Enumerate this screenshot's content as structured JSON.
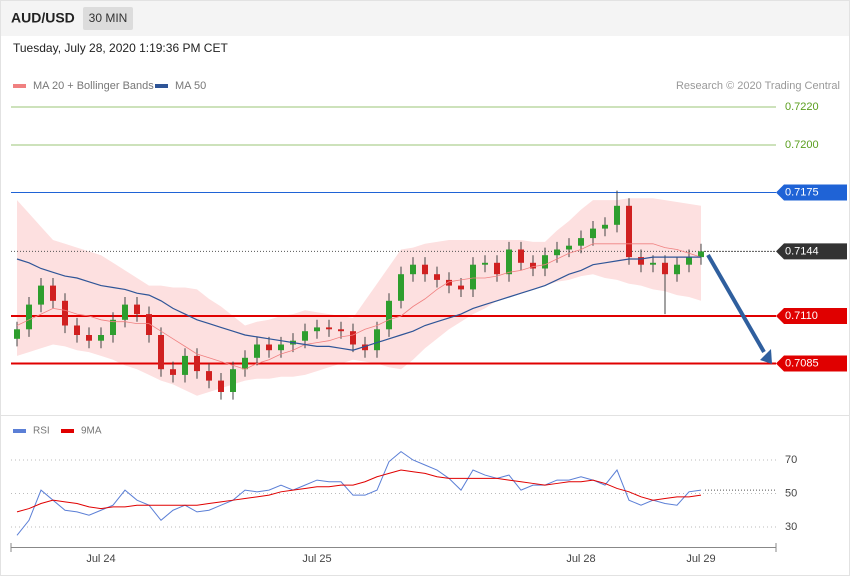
{
  "header": {
    "symbol": "AUD/USD",
    "interval": "30 MIN",
    "date": "Tuesday, July 28, 2020 1:19:36 PM CET"
  },
  "chart_data": [
    {
      "type": "candlestick",
      "credit": "Research © 2020 Trading Central",
      "ylim": [
        0.7061,
        0.7229
      ],
      "candles": {
        "up_color": "#2e9e2e",
        "down_color": "#d02020",
        "open": [
          0.7098,
          0.7103,
          0.7116,
          0.7126,
          0.7118,
          0.7105,
          0.71,
          0.7097,
          0.71,
          0.7108,
          0.7116,
          0.7111,
          0.71,
          0.7082,
          0.7079,
          0.7089,
          0.7081,
          0.7076,
          0.707,
          0.7082,
          0.7088,
          0.7095,
          0.7092,
          0.7095,
          0.7097,
          0.7102,
          0.7104,
          0.7103,
          0.7102,
          0.7095,
          0.7092,
          0.7103,
          0.7118,
          0.7132,
          0.7137,
          0.7132,
          0.7129,
          0.7126,
          0.7124,
          0.7137,
          0.7138,
          0.7132,
          0.7145,
          0.7138,
          0.7135,
          0.7142,
          0.7145,
          0.7147,
          0.7151,
          0.7156,
          0.7158,
          0.7168,
          0.7141,
          0.7137,
          0.7138,
          0.7132,
          0.7137,
          0.7141
        ],
        "high": [
          0.7107,
          0.712,
          0.713,
          0.713,
          0.7122,
          0.7109,
          0.7104,
          0.7104,
          0.7112,
          0.712,
          0.712,
          0.7115,
          0.7104,
          0.7086,
          0.7093,
          0.7093,
          0.7085,
          0.708,
          0.7086,
          0.7092,
          0.7099,
          0.7099,
          0.7099,
          0.7101,
          0.7106,
          0.7108,
          0.7108,
          0.7107,
          0.7106,
          0.7099,
          0.7107,
          0.7122,
          0.7136,
          0.7141,
          0.7141,
          0.7136,
          0.7133,
          0.713,
          0.7141,
          0.7142,
          0.7142,
          0.7149,
          0.7149,
          0.7142,
          0.7146,
          0.7149,
          0.7151,
          0.7155,
          0.716,
          0.7162,
          0.7176,
          0.7172,
          0.7145,
          0.7142,
          0.7142,
          0.7141,
          0.7145,
          0.7148
        ],
        "low": [
          0.7094,
          0.7099,
          0.7112,
          0.7114,
          0.7101,
          0.7096,
          0.7093,
          0.7093,
          0.7096,
          0.7104,
          0.7107,
          0.7096,
          0.7078,
          0.7075,
          0.7075,
          0.7077,
          0.7072,
          0.7066,
          0.7066,
          0.7078,
          0.7084,
          0.7088,
          0.7088,
          0.7091,
          0.7093,
          0.7098,
          0.7099,
          0.7098,
          0.7091,
          0.7088,
          0.7088,
          0.7099,
          0.7114,
          0.7128,
          0.7128,
          0.7125,
          0.7122,
          0.712,
          0.712,
          0.7133,
          0.7128,
          0.7128,
          0.7134,
          0.7131,
          0.7131,
          0.7138,
          0.7141,
          0.7143,
          0.7147,
          0.7152,
          0.7154,
          0.7137,
          0.7133,
          0.7133,
          0.7111,
          0.7128,
          0.7133,
          0.7137
        ],
        "close": [
          0.7103,
          0.7116,
          0.7126,
          0.7118,
          0.7105,
          0.71,
          0.7097,
          0.71,
          0.7108,
          0.7116,
          0.7111,
          0.71,
          0.7082,
          0.7079,
          0.7089,
          0.7081,
          0.7076,
          0.707,
          0.7082,
          0.7088,
          0.7095,
          0.7092,
          0.7095,
          0.7097,
          0.7102,
          0.7104,
          0.7103,
          0.7102,
          0.7095,
          0.7092,
          0.7103,
          0.7118,
          0.7132,
          0.7137,
          0.7132,
          0.7129,
          0.7126,
          0.7124,
          0.7137,
          0.7138,
          0.7132,
          0.7145,
          0.7138,
          0.7135,
          0.7142,
          0.7145,
          0.7147,
          0.7151,
          0.7156,
          0.7158,
          0.7168,
          0.7141,
          0.7137,
          0.7138,
          0.7132,
          0.7137,
          0.7141,
          0.7144
        ]
      },
      "series": [
        {
          "name": "MA 20 + Bollinger Bands",
          "color": "#f08080",
          "band_color": "#fde0e0",
          "values": [
            0.7105,
            0.7108,
            0.7111,
            0.7114,
            0.7113,
            0.7111,
            0.711,
            0.7108,
            0.7107,
            0.7107,
            0.7106,
            0.7106,
            0.7102,
            0.7098,
            0.7094,
            0.709,
            0.7088,
            0.7086,
            0.7084,
            0.7082,
            0.7085,
            0.7087,
            0.709,
            0.7092,
            0.7095,
            0.7096,
            0.7097,
            0.7099,
            0.71,
            0.7103,
            0.7105,
            0.7108,
            0.711,
            0.7115,
            0.7119,
            0.7124,
            0.7128,
            0.7129,
            0.713,
            0.713,
            0.7131,
            0.7133,
            0.7134,
            0.7136,
            0.7137,
            0.714,
            0.7143,
            0.7145,
            0.7148,
            0.7148,
            0.7148,
            0.7148,
            0.7148,
            0.7148,
            0.7146,
            0.7145,
            0.7143,
            0.7141
          ],
          "upper": [
            0.7171,
            0.7164,
            0.7157,
            0.715,
            0.7148,
            0.7146,
            0.7144,
            0.7142,
            0.7138,
            0.7134,
            0.713,
            0.7126,
            0.7126,
            0.7125,
            0.7125,
            0.7124,
            0.7119,
            0.7115,
            0.711,
            0.7105,
            0.7107,
            0.7108,
            0.711,
            0.7111,
            0.7113,
            0.7112,
            0.7111,
            0.711,
            0.7109,
            0.7118,
            0.7127,
            0.7136,
            0.7145,
            0.7146,
            0.7148,
            0.7149,
            0.715,
            0.715,
            0.715,
            0.715,
            0.715,
            0.715,
            0.715,
            0.7149,
            0.7149,
            0.7155,
            0.716,
            0.7166,
            0.7171,
            0.7171,
            0.7171,
            0.7172,
            0.7172,
            0.7172,
            0.7171,
            0.717,
            0.7169,
            0.7168
          ],
          "lower": [
            0.7089,
            0.7091,
            0.7093,
            0.7095,
            0.7094,
            0.7092,
            0.7091,
            0.7089,
            0.7087,
            0.7084,
            0.7082,
            0.7079,
            0.7076,
            0.7074,
            0.7071,
            0.7068,
            0.707,
            0.7072,
            0.7074,
            0.7076,
            0.7077,
            0.7077,
            0.7078,
            0.7078,
            0.7079,
            0.7081,
            0.7083,
            0.7085,
            0.7087,
            0.7086,
            0.7085,
            0.7083,
            0.7082,
            0.7087,
            0.7093,
            0.7098,
            0.7103,
            0.7107,
            0.7111,
            0.7114,
            0.7118,
            0.712,
            0.7122,
            0.7124,
            0.7126,
            0.7128,
            0.7129,
            0.7131,
            0.7132,
            0.713,
            0.7129,
            0.7127,
            0.7126,
            0.7124,
            0.7123,
            0.7121,
            0.712,
            0.7118
          ]
        },
        {
          "name": "MA 50",
          "color": "#2f5597",
          "values": [
            0.714,
            0.7138,
            0.7135,
            0.7133,
            0.7131,
            0.713,
            0.7128,
            0.7126,
            0.7125,
            0.7124,
            0.7122,
            0.7121,
            0.7118,
            0.7114,
            0.7111,
            0.7108,
            0.7106,
            0.7104,
            0.7102,
            0.71,
            0.7099,
            0.7098,
            0.7097,
            0.7096,
            0.7095,
            0.7094,
            0.7094,
            0.7093,
            0.7092,
            0.7094,
            0.7096,
            0.7098,
            0.71,
            0.7102,
            0.7105,
            0.7107,
            0.7109,
            0.7111,
            0.7114,
            0.7116,
            0.7118,
            0.712,
            0.7122,
            0.7124,
            0.7126,
            0.7129,
            0.7132,
            0.7134,
            0.7137,
            0.7138,
            0.7139,
            0.714,
            0.714,
            0.7141,
            0.7141,
            0.7141,
            0.7141,
            0.7141
          ]
        }
      ],
      "levels": [
        {
          "value": 0.722,
          "label": "0.7220",
          "color": "#5a9e1e",
          "boxed": false
        },
        {
          "value": 0.72,
          "label": "0.7200",
          "color": "#5a9e1e",
          "boxed": false
        },
        {
          "value": 0.7175,
          "color": "#1f63d6",
          "boxed": true
        },
        {
          "value": 0.7144,
          "color": "#333333",
          "boxed": true,
          "dotted": true
        },
        {
          "value": 0.711,
          "label": "0.7110",
          "color": "#e00000",
          "boxed": true
        },
        {
          "value": 0.7085,
          "color": "#e00000",
          "boxed": true
        }
      ]
    },
    {
      "type": "line",
      "ylim": [
        19,
        82
      ],
      "yticks": [
        30,
        50,
        70
      ],
      "grid": true,
      "categories": [
        null,
        null,
        null,
        null,
        null,
        null,
        null,
        "Jul 24",
        null,
        null,
        null,
        null,
        null,
        null,
        null,
        null,
        null,
        null,
        null,
        null,
        null,
        null,
        null,
        null,
        null,
        "Jul 25",
        null,
        null,
        null,
        null,
        null,
        null,
        null,
        null,
        null,
        null,
        null,
        null,
        null,
        null,
        null,
        null,
        null,
        null,
        null,
        null,
        null,
        "Jul 28",
        null,
        null,
        null,
        null,
        null,
        null,
        null,
        null,
        null,
        "Jul 29"
      ],
      "series": [
        {
          "name": "RSI",
          "color": "#5b7fd6",
          "values": [
            25,
            34,
            52,
            46,
            40,
            39,
            37,
            40,
            43,
            52,
            46,
            43,
            34,
            40,
            43,
            39,
            40,
            43,
            46,
            52,
            51,
            52,
            55,
            52,
            55,
            58,
            57,
            57,
            49,
            49,
            52,
            69,
            75,
            70,
            67,
            64,
            59,
            52,
            64,
            61,
            59,
            61,
            52,
            55,
            55,
            58,
            58,
            60,
            58,
            55,
            64,
            46,
            43,
            46,
            44,
            43,
            51,
            52
          ]
        },
        {
          "name": "9MA",
          "color": "#e00000",
          "values": [
            39,
            41,
            44,
            46,
            45,
            44,
            42,
            41,
            42,
            42,
            43,
            43,
            43,
            43,
            43,
            43,
            44,
            45,
            46,
            47,
            48,
            49,
            51,
            52,
            53,
            54,
            54,
            55,
            55,
            57,
            60,
            62,
            64,
            63,
            62,
            60,
            59,
            59,
            59,
            59,
            59,
            58,
            57,
            56,
            55,
            56,
            57,
            57,
            58,
            56,
            53,
            51,
            48,
            46,
            47,
            48,
            48,
            49
          ]
        }
      ]
    }
  ]
}
